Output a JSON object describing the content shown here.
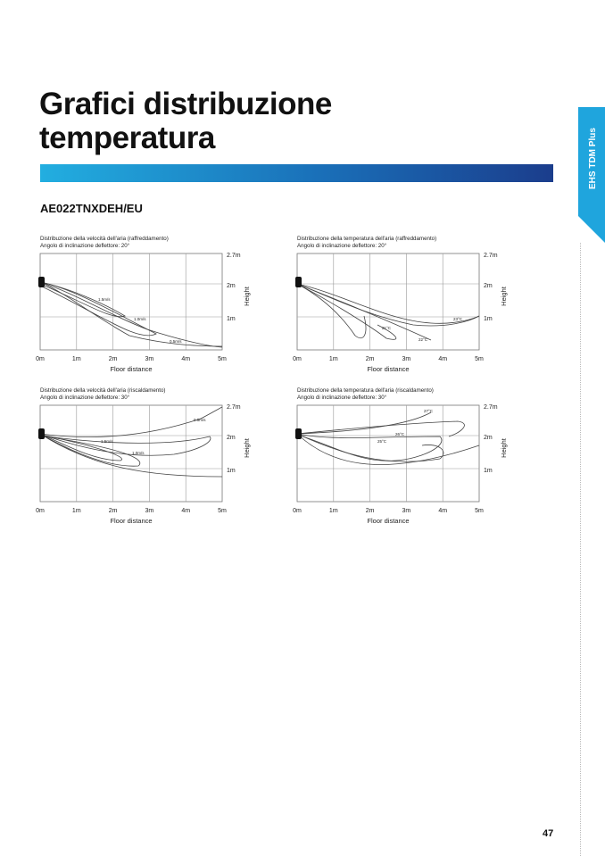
{
  "header": {
    "title_line1": "Grafici distribuzione",
    "title_line2": "temperatura",
    "side_tab": "EHS TDM Plus"
  },
  "model": "AE022TNXDEH/EU",
  "charts": [
    {
      "caption_line1": "Distribuzione della velocità dell'aria (raffreddamento)",
      "caption_line2": "Angolo di inclinazione deflettore: 20°",
      "curve_labels": [
        "1.5m/s",
        "1.0m/s",
        "0.5m/s"
      ],
      "x_labels": [
        "0m",
        "1m",
        "2m",
        "3m",
        "4m",
        "5m"
      ],
      "y_labels": [
        "2.7m",
        "2m",
        "1m"
      ],
      "x_axis_title": "Floor distance",
      "y_axis_title": "Height"
    },
    {
      "caption_line1": "Distribuzione della temperatura dell'aria (raffreddamento)",
      "caption_line2": "Angolo di inclinazione deflettore: 20°",
      "curve_labels": [
        "23°C",
        "21°C",
        "22°C"
      ],
      "x_labels": [
        "0m",
        "1m",
        "2m",
        "3m",
        "4m",
        "5m"
      ],
      "y_labels": [
        "2.7m",
        "2m",
        "1m"
      ],
      "x_axis_title": "Floor distance",
      "y_axis_title": "Height"
    },
    {
      "caption_line1": "Distribuzione della velocità dell'aria (riscaldamento)",
      "caption_line2": "Angolo di inclinazione deflettore: 30°",
      "curve_labels": [
        "0.5m/s",
        "1.5m/s",
        "1.0m/s"
      ],
      "x_labels": [
        "0m",
        "1m",
        "2m",
        "3m",
        "4m",
        "5m"
      ],
      "y_labels": [
        "2.7m",
        "2m",
        "1m"
      ],
      "x_axis_title": "Floor distance",
      "y_axis_title": "Height"
    },
    {
      "caption_line1": "Distribuzione della temperatura dell'aria (riscaldamento)",
      "caption_line2": "Angolo di inclinazione deflettore: 30°",
      "curve_labels": [
        "27°C",
        "26°C",
        "25°C"
      ],
      "x_labels": [
        "0m",
        "1m",
        "2m",
        "3m",
        "4m",
        "5m"
      ],
      "y_labels": [
        "2.7m",
        "2m",
        "1m"
      ],
      "x_axis_title": "Floor distance",
      "y_axis_title": "Height"
    }
  ],
  "page_number": "47"
}
